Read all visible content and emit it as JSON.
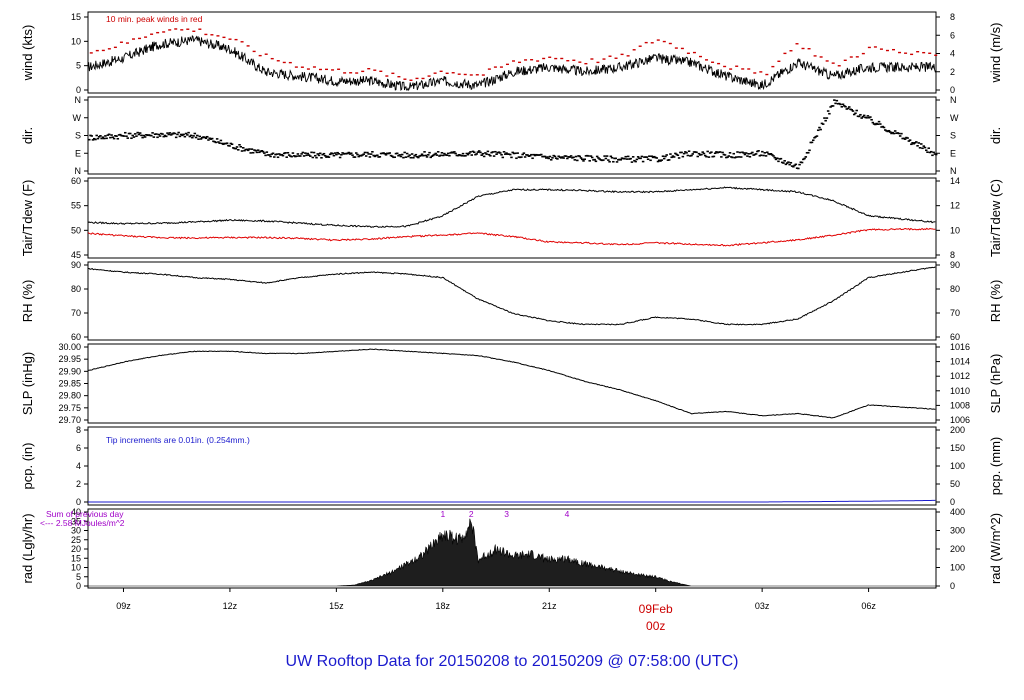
{
  "chart_data": {
    "type": "line",
    "title": "UW Rooftop Data for 20150208  to  20150209 @ 07:58:00  (UTC)",
    "x_ticks": [
      "09z",
      "12z",
      "15z",
      "18z",
      "21z",
      "00z",
      "03z",
      "06z"
    ],
    "date_marker": "09Feb",
    "panels": [
      {
        "id": "wind",
        "ylabel_left": "wind (kts)",
        "ylabel_right": "wind (m/s)",
        "ylim": [
          0,
          16
        ],
        "left_ticks": [
          "0",
          "5",
          "10",
          "15"
        ],
        "right_ticks": [
          "0",
          "2",
          "4",
          "6",
          "8"
        ],
        "annotation": "10 min. peak winds in red",
        "series": [
          {
            "name": "wind speed",
            "color": "#000000",
            "hours": [
              8,
              9,
              10,
              11,
              12,
              13,
              14,
              15,
              16,
              17,
              18,
              19,
              20,
              21,
              22,
              23,
              24,
              25,
              26,
              27,
              28,
              29,
              30,
              31.9
            ],
            "values": [
              5,
              7,
              10,
              11,
              9,
              4,
              3,
              2,
              2,
              0.5,
              2,
              1,
              4,
              5,
              4,
              5,
              7,
              6,
              3,
              1,
              6,
              3,
              5,
              5
            ]
          },
          {
            "name": "10 min. peak winds",
            "color": "#cc0000",
            "hours": [
              8,
              9,
              10,
              11,
              12,
              13,
              14,
              15,
              16,
              17,
              18,
              19,
              20,
              21,
              22,
              23,
              24,
              25,
              26,
              27,
              28,
              29,
              30,
              31.9
            ],
            "values": [
              8,
              10,
              13,
              13,
              11,
              7,
              5,
              4,
              4,
              2,
              4,
              3,
              6,
              7,
              6,
              7,
              11,
              8,
              5,
              3,
              10,
              5,
              9,
              7
            ]
          }
        ]
      },
      {
        "id": "dir",
        "ylabel_left": "dir.",
        "ylabel_right": "dir.",
        "ylim": [
          0,
          360
        ],
        "left_ticks": [
          "N",
          "E",
          "S",
          "W",
          "N"
        ],
        "right_ticks": [
          "N",
          "E",
          "S",
          "W",
          "N"
        ],
        "series": [
          {
            "name": "wind direction",
            "color": "#000000",
            "hours": [
              8,
              9,
              10,
              11,
              12,
              13,
              14,
              15,
              16,
              17,
              18,
              19,
              20,
              21,
              22,
              23,
              24,
              25,
              26,
              27,
              28,
              29,
              30,
              31.9
            ],
            "values": [
              170,
              180,
              185,
              180,
              130,
              85,
              80,
              80,
              85,
              80,
              85,
              90,
              80,
              70,
              65,
              60,
              60,
              90,
              80,
              90,
              20,
              350,
              260,
              80
            ]
          }
        ]
      },
      {
        "id": "temp",
        "ylabel_left": "Tair/Tdew (F)",
        "ylabel_right": "Tair/Tdew (C)",
        "ylim": [
          43,
          60
        ],
        "left_ticks": [
          "45",
          "50",
          "55",
          "60"
        ],
        "right_ticks": [
          "8",
          "10",
          "12",
          "14"
        ],
        "series": [
          {
            "name": "Tair",
            "color": "#000000",
            "hours": [
              8,
              9,
              10,
              11,
              12,
              13,
              14,
              15,
              16,
              17,
              18,
              19,
              20,
              21,
              22,
              23,
              24,
              25,
              26,
              27,
              28,
              29,
              30,
              31.9
            ],
            "values": [
              50.5,
              50.2,
              50.3,
              50.6,
              51.0,
              50.8,
              50.3,
              49.8,
              49.5,
              49.6,
              52.0,
              56.5,
              58.0,
              58.0,
              57.8,
              57.5,
              57.5,
              58.0,
              58.5,
              58.0,
              57.5,
              55.5,
              52.0,
              50.5
            ]
          },
          {
            "name": "Tdew",
            "color": "#e00000",
            "hours": [
              8,
              9,
              10,
              11,
              12,
              13,
              14,
              15,
              16,
              17,
              18,
              19,
              20,
              21,
              22,
              23,
              24,
              25,
              26,
              27,
              28,
              29,
              30,
              31.9
            ],
            "values": [
              48.0,
              47.4,
              47.0,
              46.9,
              47.0,
              47.0,
              46.8,
              46.4,
              46.7,
              47.2,
              47.6,
              48.0,
              47.2,
              46.0,
              45.8,
              45.4,
              45.8,
              45.5,
              45.2,
              45.8,
              46.5,
              47.5,
              48.8,
              49.0
            ]
          }
        ]
      },
      {
        "id": "rh",
        "ylabel_left": "RH (%)",
        "ylabel_right": "RH (%)",
        "ylim": [
          55,
          95
        ],
        "left_ticks": [
          "60",
          "70",
          "80",
          "90"
        ],
        "right_ticks": [
          "60",
          "70",
          "80",
          "90"
        ],
        "series": [
          {
            "name": "RH",
            "color": "#000000",
            "hours": [
              8,
              9,
              10,
              11,
              12,
              13,
              14,
              15,
              16,
              17,
              18,
              19,
              20,
              21,
              22,
              23,
              24,
              25,
              26,
              27,
              28,
              29,
              30,
              31.9
            ],
            "values": [
              93,
              91,
              90,
              88,
              87,
              85,
              88,
              90,
              91,
              90,
              88,
              76,
              68,
              64,
              62,
              62,
              66,
              65,
              62,
              62,
              65,
              75,
              88,
              94
            ]
          }
        ]
      },
      {
        "id": "slp",
        "ylabel_left": "SLP (inHg)",
        "ylabel_right": "SLP (hPa)",
        "ylim": [
          29.69,
          30.03
        ],
        "left_ticks": [
          "29.70",
          "29.75",
          "29.80",
          "29.85",
          "29.90",
          "29.95",
          "30.00"
        ],
        "right_ticks": [
          "1006",
          "1008",
          "1010",
          "1012",
          "1014",
          "1016"
        ],
        "series": [
          {
            "name": "SLP",
            "color": "#000000",
            "hours": [
              8,
              9,
              10,
              11,
              12,
              13,
              14,
              15,
              16,
              17,
              18,
              19,
              20,
              21,
              22,
              23,
              24,
              25,
              26,
              27,
              28,
              29,
              30,
              31.9
            ],
            "values": [
              29.92,
              29.96,
              29.99,
              30.01,
              30.01,
              30.0,
              30.0,
              30.01,
              30.02,
              30.01,
              30.0,
              29.99,
              29.96,
              29.92,
              29.87,
              29.83,
              29.78,
              29.72,
              29.73,
              29.71,
              29.72,
              29.7,
              29.76,
              29.74
            ]
          }
        ]
      },
      {
        "id": "pcp",
        "ylabel_left": "pcp. (in)",
        "ylabel_right": "pcp. (mm)",
        "ylim": [
          0,
          9
        ],
        "left_ticks": [
          "0",
          "2",
          "4",
          "6",
          "8"
        ],
        "right_ticks": [
          "0",
          "50",
          "100",
          "150",
          "200"
        ],
        "annotation": "Tip increments are 0.01in. (0.254mm.)",
        "series": [
          {
            "name": "precipitation",
            "color": "#1a1acd",
            "hours": [
              8,
              24,
              27,
              30,
              31.9
            ],
            "values": [
              0,
              0,
              0,
              0.1,
              0.2
            ]
          }
        ]
      },
      {
        "id": "rad",
        "ylabel_left": "rad (Lgly/hr)",
        "ylabel_right": "rad (W/m^2)",
        "ylim": [
          0,
          40
        ],
        "left_ticks": [
          "0",
          "5",
          "10",
          "15",
          "20",
          "25",
          "30",
          "35",
          "40"
        ],
        "right_ticks": [
          "0",
          "100",
          "200",
          "300",
          "400"
        ],
        "annotation_lines": [
          "Sum of previous day",
          "<--- 2.58 MJoules/m^2"
        ],
        "markers": [
          {
            "label": "1",
            "hour": 18.0
          },
          {
            "label": "2",
            "hour": 18.8
          },
          {
            "label": "3",
            "hour": 19.8
          },
          {
            "label": "4",
            "hour": 21.5
          }
        ],
        "series": [
          {
            "name": "solar radiation",
            "color": "#000000",
            "hours": [
              8,
              15,
              15.5,
              16,
              16.5,
              17,
              17.5,
              18,
              18.5,
              18.8,
              19,
              19.5,
              20,
              20.5,
              21,
              21.5,
              22,
              22.5,
              23,
              23.5,
              24,
              24.5,
              25,
              31.9
            ],
            "values": [
              0,
              0,
              0.5,
              3,
              7,
              12,
              18,
              28,
              25,
              35,
              14,
              20,
              16,
              17,
              14,
              15,
              12,
              10,
              8,
              6,
              5,
              2,
              0,
              0
            ]
          }
        ]
      }
    ]
  }
}
